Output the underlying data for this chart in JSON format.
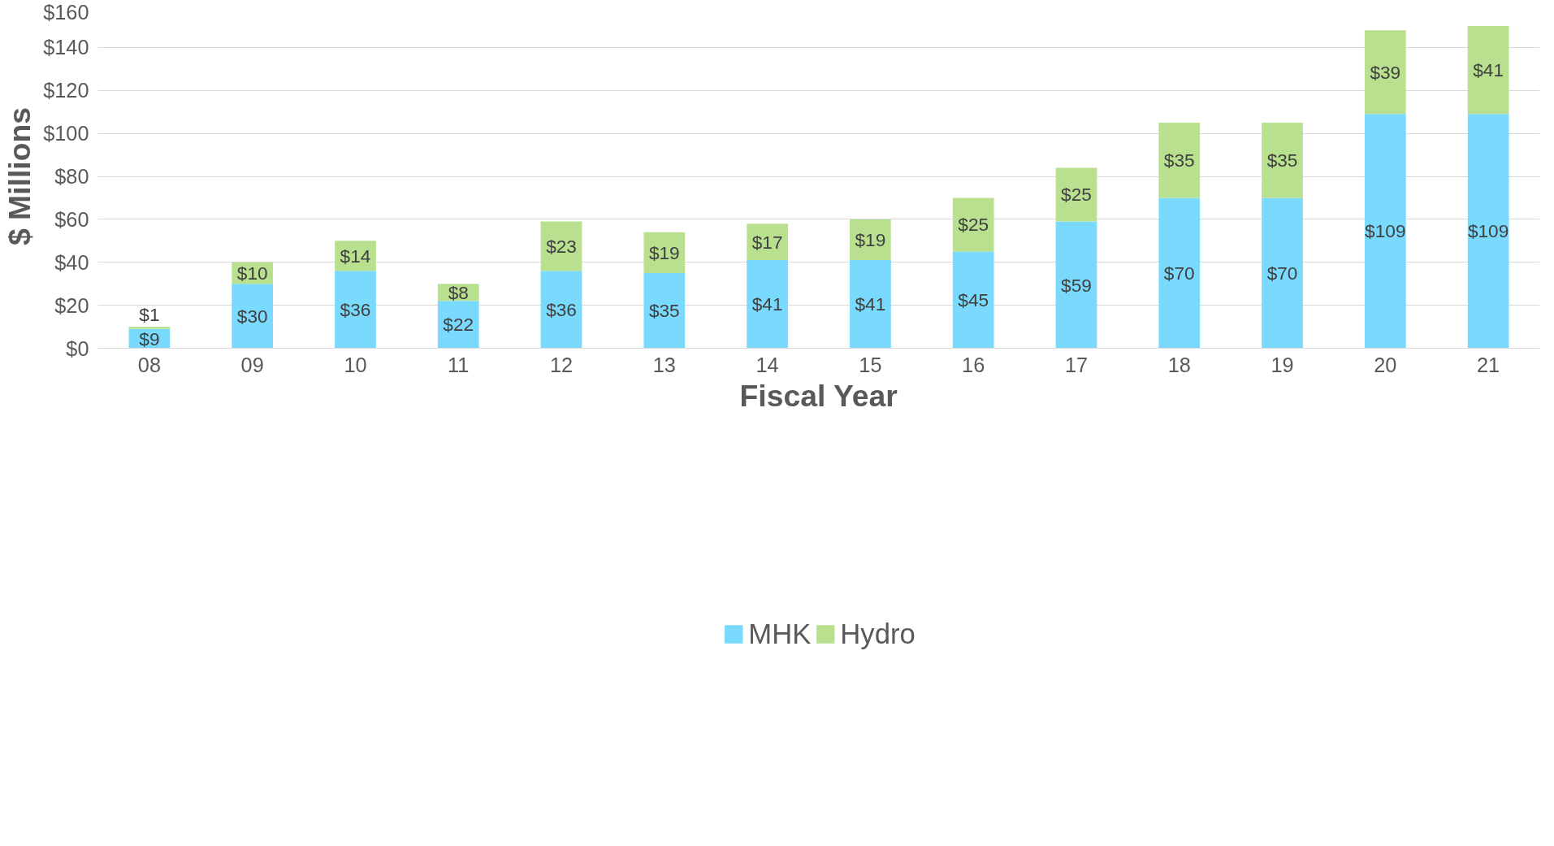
{
  "chart_data": {
    "type": "bar",
    "stacked": true,
    "xlabel": "Fiscal Year",
    "ylabel": "$ Millions",
    "categories": [
      "08",
      "09",
      "10",
      "11",
      "12",
      "13",
      "14",
      "15",
      "16",
      "17",
      "18",
      "19",
      "20",
      "21"
    ],
    "series": [
      {
        "name": "MHK",
        "color": "#79dafd",
        "values": [
          9,
          30,
          36,
          22,
          36,
          35,
          41,
          41,
          45,
          59,
          70,
          70,
          109,
          109
        ],
        "value_labels": [
          "$9",
          "$30",
          "$36",
          "$22",
          "$36",
          "$35",
          "$41",
          "$41",
          "$45",
          "$59",
          "$70",
          "$70",
          "$109",
          "$109"
        ]
      },
      {
        "name": "Hydro",
        "color": "#b9e08e",
        "values": [
          1,
          10,
          14,
          8,
          23,
          19,
          17,
          19,
          25,
          25,
          35,
          35,
          39,
          41
        ],
        "value_labels": [
          "$1",
          "$10",
          "$14",
          "$8",
          "$23",
          "$19",
          "$17",
          "$19",
          "$25",
          "$25",
          "$35",
          "$35",
          "$39",
          "$41"
        ]
      }
    ],
    "ylim": [
      0,
      160
    ],
    "yticks": [
      {
        "value": 0,
        "label": "$0"
      },
      {
        "value": 20,
        "label": "$20"
      },
      {
        "value": 40,
        "label": "$40"
      },
      {
        "value": 60,
        "label": "$60"
      },
      {
        "value": 80,
        "label": "$80"
      },
      {
        "value": 100,
        "label": "$100"
      },
      {
        "value": 120,
        "label": "$120"
      },
      {
        "value": 140,
        "label": "$140"
      },
      {
        "value": 160,
        "label": "$160"
      }
    ],
    "grid": "y",
    "legend": "bottom"
  }
}
